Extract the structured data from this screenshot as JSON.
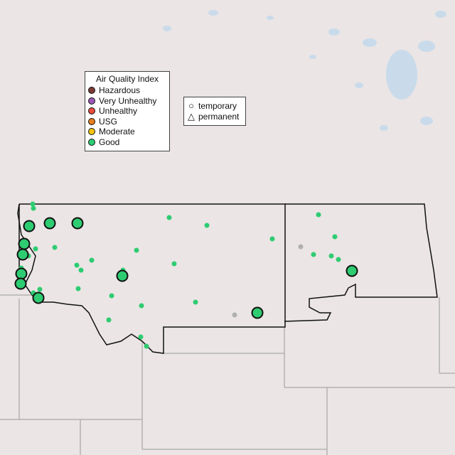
{
  "legend_aqi": {
    "title": "Air Quality Index",
    "items": [
      {
        "label": "Hazardous",
        "color": "#7e3b35"
      },
      {
        "label": "Very Unhealthy",
        "color": "#9b59b6"
      },
      {
        "label": "Unhealthy",
        "color": "#e74c3c"
      },
      {
        "label": "USG",
        "color": "#e67e22"
      },
      {
        "label": "Moderate",
        "color": "#f1c40f"
      },
      {
        "label": "Good",
        "color": "#2ecc71"
      }
    ]
  },
  "legend_shape": {
    "items": [
      {
        "label": "temporary",
        "icon": "circle-icon"
      },
      {
        "label": "permanent",
        "icon": "triangle-icon"
      }
    ]
  },
  "colors": {
    "land": "#ebe5e5",
    "water": "#c8dcec",
    "no_data": "#b0b0b0",
    "good": "#2ecc71"
  }
}
